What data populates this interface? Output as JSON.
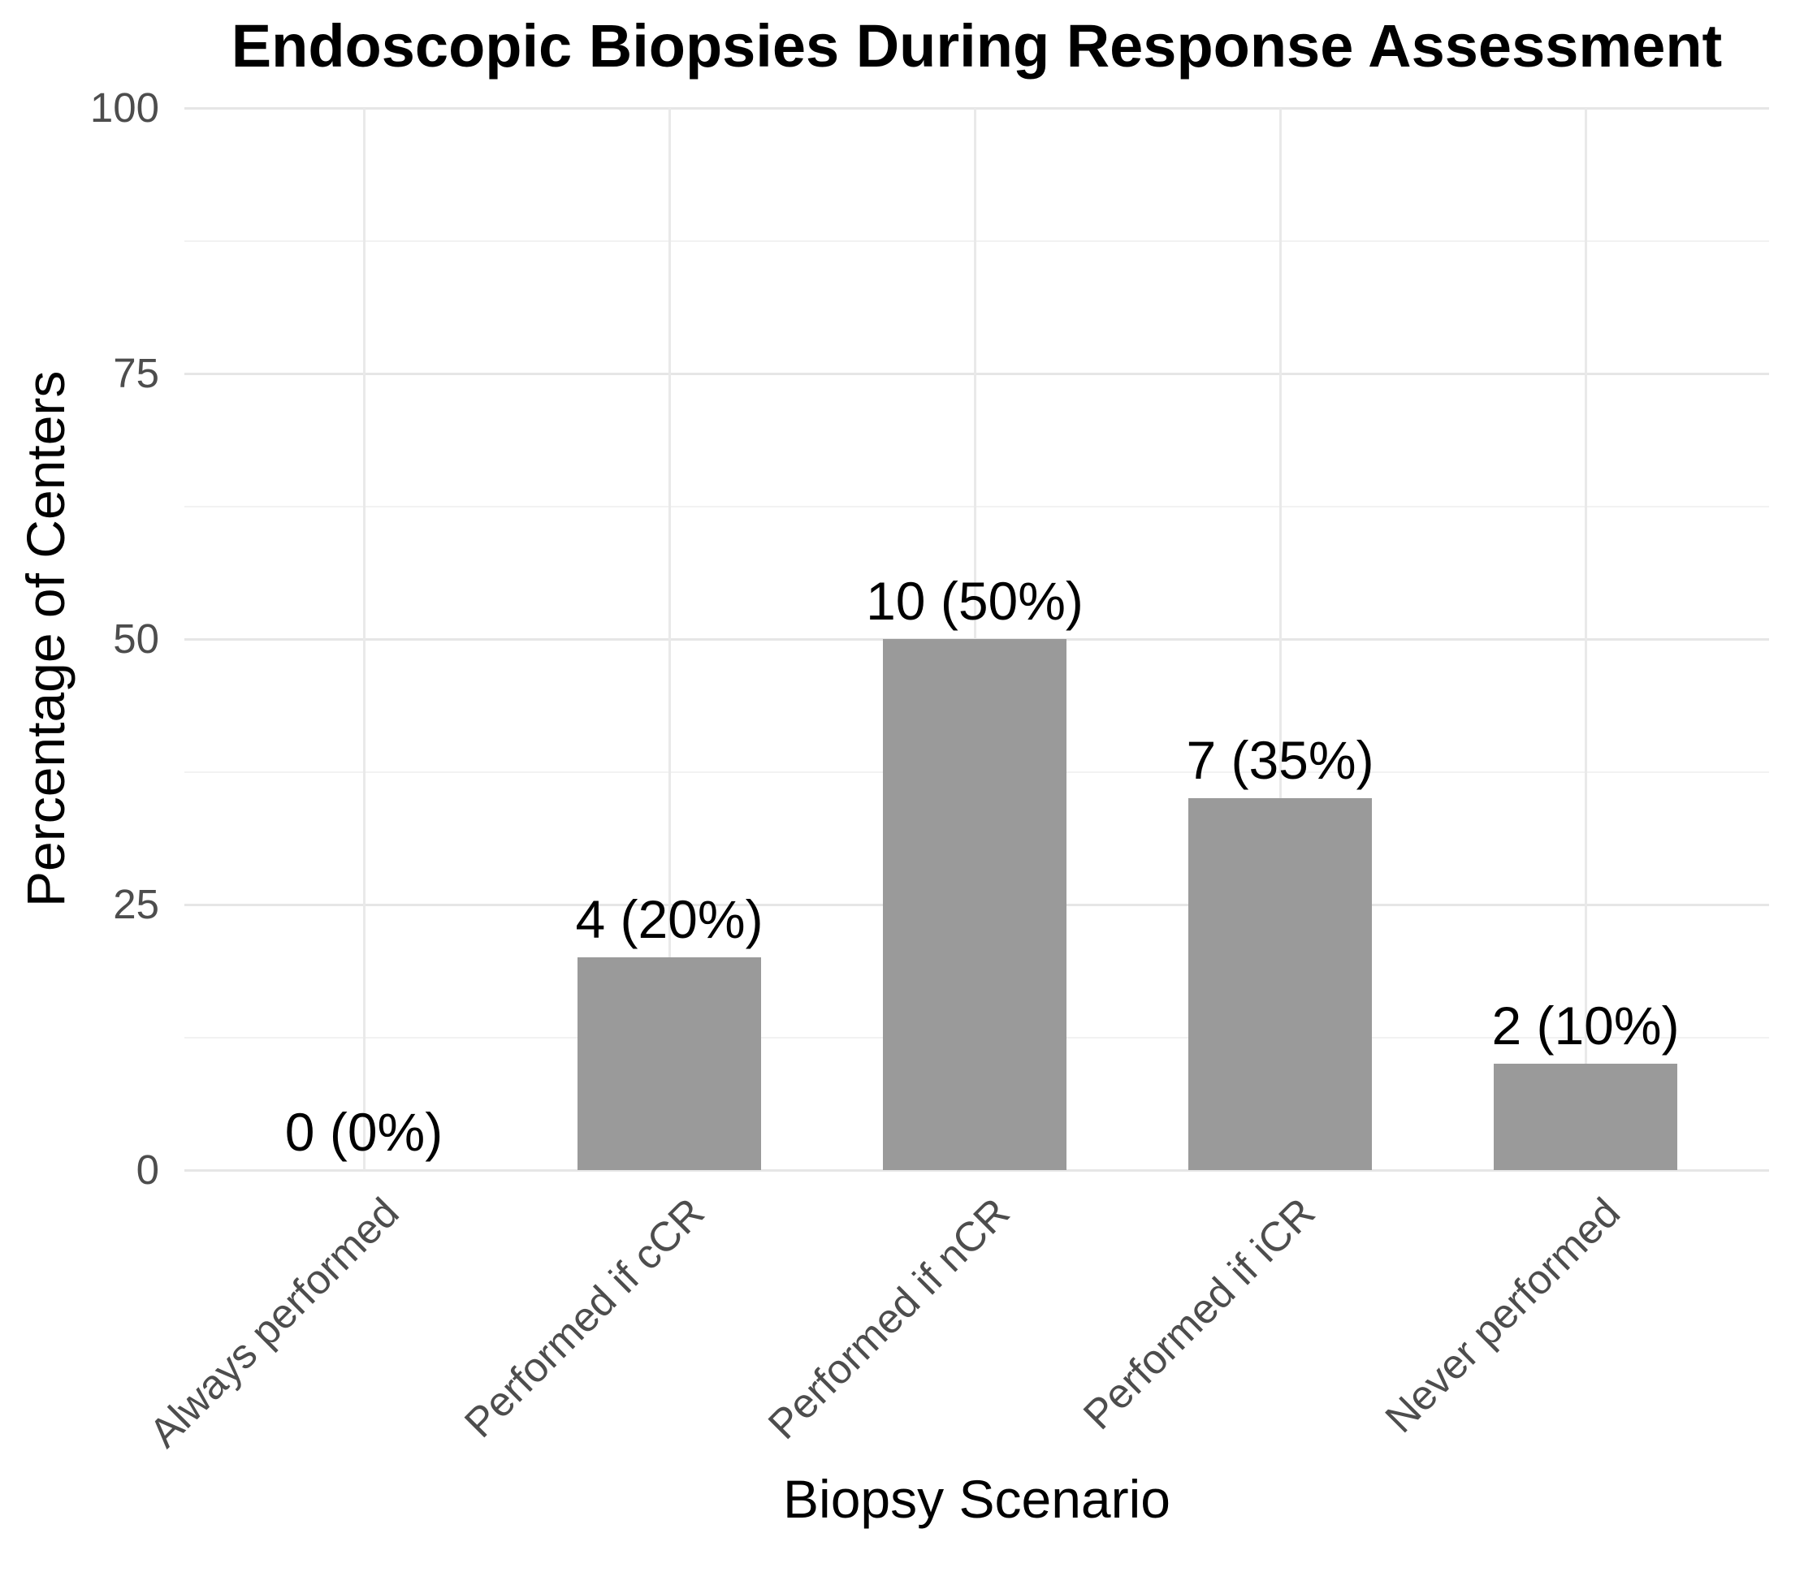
{
  "chart_data": {
    "type": "bar",
    "title": "Endoscopic Biopsies During Response Assessment",
    "xlabel": "Biopsy Scenario",
    "ylabel": "Percentage of Centers",
    "categories": [
      "Always performed",
      "Performed if cCR",
      "Performed if nCR",
      "Performed if iCR",
      "Never performed"
    ],
    "values": [
      0,
      20,
      50,
      35,
      10
    ],
    "counts": [
      0,
      4,
      10,
      7,
      2
    ],
    "bar_labels": [
      "0 (0%)",
      "4 (20%)",
      "10 (50%)",
      "7 (35%)",
      "2 (10%)"
    ],
    "ylim": [
      0,
      100
    ],
    "yticks": [
      0,
      25,
      50,
      75,
      100
    ],
    "ytick_labels": [
      "0",
      "25",
      "50",
      "75",
      "100"
    ],
    "yminor": [
      12.5,
      37.5,
      62.5,
      87.5
    ],
    "grid": "horizontal major+minor, vertical major at categories",
    "legend": "none",
    "bar_color": "#9a9a9a",
    "grid_major_color": "#e6e6e6",
    "grid_minor_color": "#f2f2f2",
    "tick_text_color": "#4d4d4d",
    "text_color": "#000000",
    "background_color": "#ffffff",
    "x_tick_angle_deg": 45
  }
}
